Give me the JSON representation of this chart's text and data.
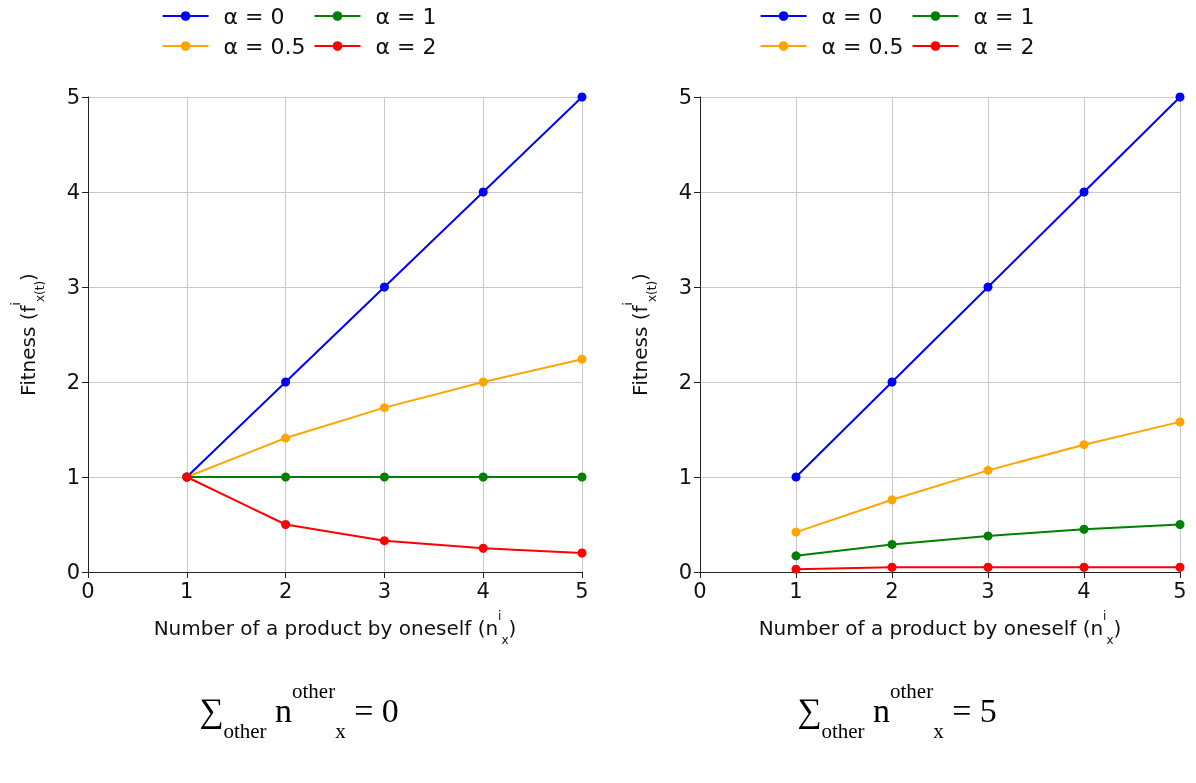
{
  "chart_data": [
    {
      "type": "line",
      "x": [
        1,
        2,
        3,
        4,
        5
      ],
      "xlabel": "Number of a product by oneself (n$^{i}$$_{x}$)",
      "ylabel": "Fitness (f$^{i}$$_{x(t)}$)",
      "xlim": [
        0,
        5
      ],
      "ylim": [
        0,
        5
      ],
      "xticks": [
        0,
        1,
        2,
        3,
        4,
        5
      ],
      "yticks": [
        0,
        1,
        2,
        3,
        4,
        5
      ],
      "grid": true,
      "legend": "top",
      "marker": "circle",
      "annotations": [
        "∑$_{other}$ n$^{other}$$_{x}$ = 0"
      ],
      "series": [
        {
          "name": "α = 0",
          "color": "#0000ff",
          "values": [
            1,
            2,
            3,
            4,
            5
          ]
        },
        {
          "name": "α = 0.5",
          "color": "#ffa500",
          "values": [
            1,
            1.41,
            1.73,
            2,
            2.24
          ]
        },
        {
          "name": "α = 1",
          "color": "#008000",
          "values": [
            1,
            1,
            1,
            1,
            1
          ]
        },
        {
          "name": "α = 2",
          "color": "#ff0000",
          "values": [
            1,
            0.5,
            0.33,
            0.25,
            0.2
          ]
        }
      ]
    },
    {
      "type": "line",
      "x": [
        1,
        2,
        3,
        4,
        5
      ],
      "xlabel": "Number of a product by oneself (n$^{i}$$_{x}$)",
      "ylabel": "Fitness (f$^{i}$$_{x(t)}$)",
      "xlim": [
        0,
        5
      ],
      "ylim": [
        0,
        5
      ],
      "xticks": [
        0,
        1,
        2,
        3,
        4,
        5
      ],
      "yticks": [
        0,
        1,
        2,
        3,
        4,
        5
      ],
      "grid": true,
      "legend": "top",
      "marker": "circle",
      "annotations": [
        "∑$_{other}$ n$^{other}$$_{x}$ = 5"
      ],
      "series": [
        {
          "name": "α = 0",
          "color": "#0000ff",
          "values": [
            1,
            2,
            3,
            4,
            5
          ]
        },
        {
          "name": "α = 0.5",
          "color": "#ffa500",
          "values": [
            0.42,
            0.76,
            1.07,
            1.34,
            1.58
          ]
        },
        {
          "name": "α = 1",
          "color": "#008000",
          "values": [
            0.17,
            0.29,
            0.38,
            0.45,
            0.5
          ]
        },
        {
          "name": "α = 2",
          "color": "#ff0000",
          "values": [
            0.03,
            0.05,
            0.05,
            0.05,
            0.05
          ]
        }
      ]
    }
  ]
}
